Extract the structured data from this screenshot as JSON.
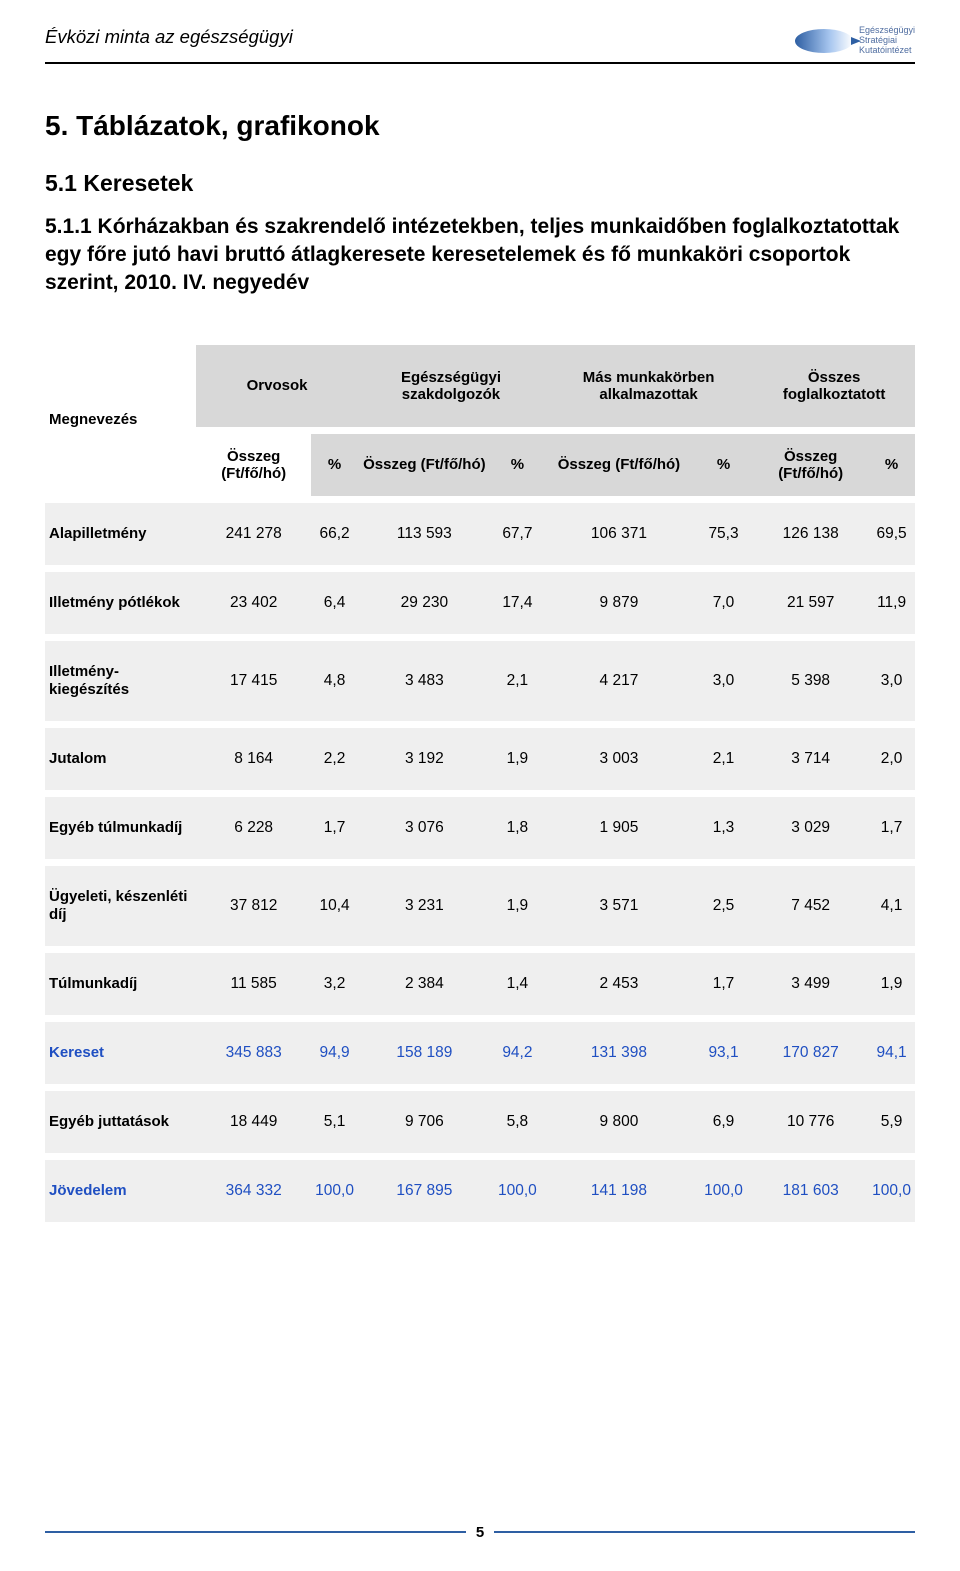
{
  "header": {
    "italic_title": "Évközi minta az egészségügyi"
  },
  "logo": {
    "lines": [
      "Egészségügyi",
      "Stratégiai",
      "Kutatóintézet"
    ]
  },
  "section_title": "5. Táblázatok, grafikonok",
  "subsection_title": "5.1 Keresetek",
  "sub2_title": "5.1.1 Kórházakban és szakrendelő intézetekben, teljes munkaidőben foglalkoztatottak egy főre jutó havi bruttó átlagkeresete keresetelemek és fő munkaköri csoportok szerint, 2010. IV. negyedév",
  "table": {
    "megnevezes_label": "Megnevezés",
    "group_headers": [
      "Orvosok",
      "Egészségügyi szakdolgozók",
      "Más munkakörben alkalmazottak",
      "Összes foglalkoztatott"
    ],
    "col_sub": {
      "osszeg": "Összeg (Ft/fő/hó)",
      "pct": "%"
    },
    "rows": [
      {
        "label": "Alapilletmény",
        "cells": [
          "241 278",
          "66,2",
          "113 593",
          "67,7",
          "106 371",
          "75,3",
          "126 138",
          "69,5"
        ],
        "highlight": false
      },
      {
        "label": "Illetmény pótlékok",
        "cells": [
          "23 402",
          "6,4",
          "29 230",
          "17,4",
          "9 879",
          "7,0",
          "21 597",
          "11,9"
        ],
        "highlight": false
      },
      {
        "label": "Illetmény-kiegészítés",
        "cells": [
          "17 415",
          "4,8",
          "3 483",
          "2,1",
          "4 217",
          "3,0",
          "5 398",
          "3,0"
        ],
        "highlight": false
      },
      {
        "label": "Jutalom",
        "cells": [
          "8 164",
          "2,2",
          "3 192",
          "1,9",
          "3 003",
          "2,1",
          "3 714",
          "2,0"
        ],
        "highlight": false
      },
      {
        "label": "Egyéb túlmunkadíj",
        "cells": [
          "6 228",
          "1,7",
          "3 076",
          "1,8",
          "1 905",
          "1,3",
          "3 029",
          "1,7"
        ],
        "highlight": false
      },
      {
        "label": "Ügyeleti, készenléti díj",
        "cells": [
          "37 812",
          "10,4",
          "3 231",
          "1,9",
          "3 571",
          "2,5",
          "7 452",
          "4,1"
        ],
        "highlight": false
      },
      {
        "label": "Túlmunkadíj",
        "cells": [
          "11 585",
          "3,2",
          "2 384",
          "1,4",
          "2 453",
          "1,7",
          "3 499",
          "1,9"
        ],
        "highlight": false
      },
      {
        "label": "Kereset",
        "cells": [
          "345 883",
          "94,9",
          "158 189",
          "94,2",
          "131 398",
          "93,1",
          "170 827",
          "94,1"
        ],
        "highlight": true
      },
      {
        "label": "Egyéb juttatások",
        "cells": [
          "18 449",
          "5,1",
          "9 706",
          "5,8",
          "9 800",
          "6,9",
          "10 776",
          "5,9"
        ],
        "highlight": false
      },
      {
        "label": "Jövedelem",
        "cells": [
          "364 332",
          "100,0",
          "167 895",
          "100,0",
          "141 198",
          "100,0",
          "181 603",
          "100,0"
        ],
        "highlight": true
      }
    ]
  },
  "footer": {
    "page_number": "5"
  },
  "colors": {
    "header_bg": "#d8d8d8",
    "row_bg": "#efefef",
    "highlight_text": "#1f4fc2",
    "footer_line": "#2e5fa3",
    "text": "#000000",
    "page_bg": "#ffffff"
  }
}
